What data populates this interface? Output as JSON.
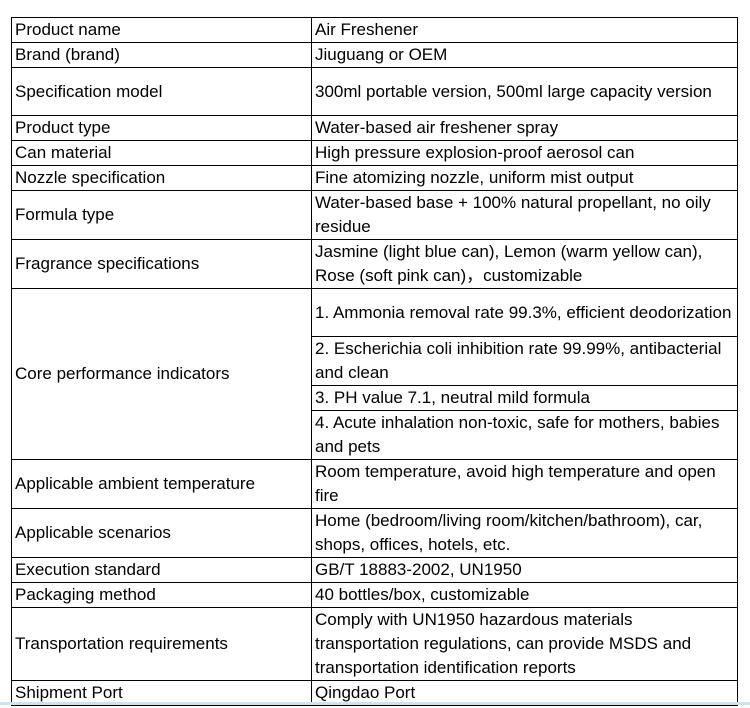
{
  "rows": [
    {
      "label": "Product name",
      "values": [
        "Air Freshener"
      ]
    },
    {
      "label": "Brand (brand)",
      "values": [
        "Jiuguang or OEM"
      ]
    },
    {
      "label": "Specification model",
      "values": [
        "300ml portable version, 500ml large capacity version"
      ]
    },
    {
      "label": "Product type",
      "values": [
        "Water-based air freshener spray"
      ]
    },
    {
      "label": "Can material",
      "values": [
        "High pressure explosion-proof aerosol can"
      ]
    },
    {
      "label": "Nozzle specification",
      "values": [
        "Fine atomizing nozzle, uniform mist output"
      ]
    },
    {
      "label": "Formula type",
      "values": [
        "Water-based base + 100% natural propellant, no oily residue"
      ]
    },
    {
      "label": "Fragrance specifications",
      "values": [
        "Jasmine (light blue can), Lemon (warm yellow can), Rose (soft pink can)，customizable"
      ]
    },
    {
      "label": "Core performance indicators",
      "values": [
        "1. Ammonia removal rate 99.3%, efficient deodorization",
        "2. Escherichia coli inhibition rate 99.99%, antibacterial and clean",
        "3. PH value 7.1, neutral mild formula",
        "4. Acute inhalation non-toxic, safe for mothers, babies and pets"
      ]
    },
    {
      "label": "Applicable ambient temperature",
      "values": [
        "Room temperature, avoid high temperature and open fire"
      ]
    },
    {
      "label": "Applicable scenarios",
      "values": [
        "Home (bedroom/living room/kitchen/bathroom), car, shops, offices, hotels, etc."
      ]
    },
    {
      "label": "Execution standard",
      "values": [
        "GB/T 18883-2002, UN1950"
      ]
    },
    {
      "label": "Packaging method",
      "values": [
        "40 bottles/box, customizable"
      ]
    },
    {
      "label": "Transportation requirements",
      "values": [
        "Comply with UN1950 hazardous materials transportation regulations, can provide MSDS and transportation identification reports"
      ]
    },
    {
      "label": "Shipment Port",
      "values": [
        "Qingdao Port"
      ]
    }
  ]
}
